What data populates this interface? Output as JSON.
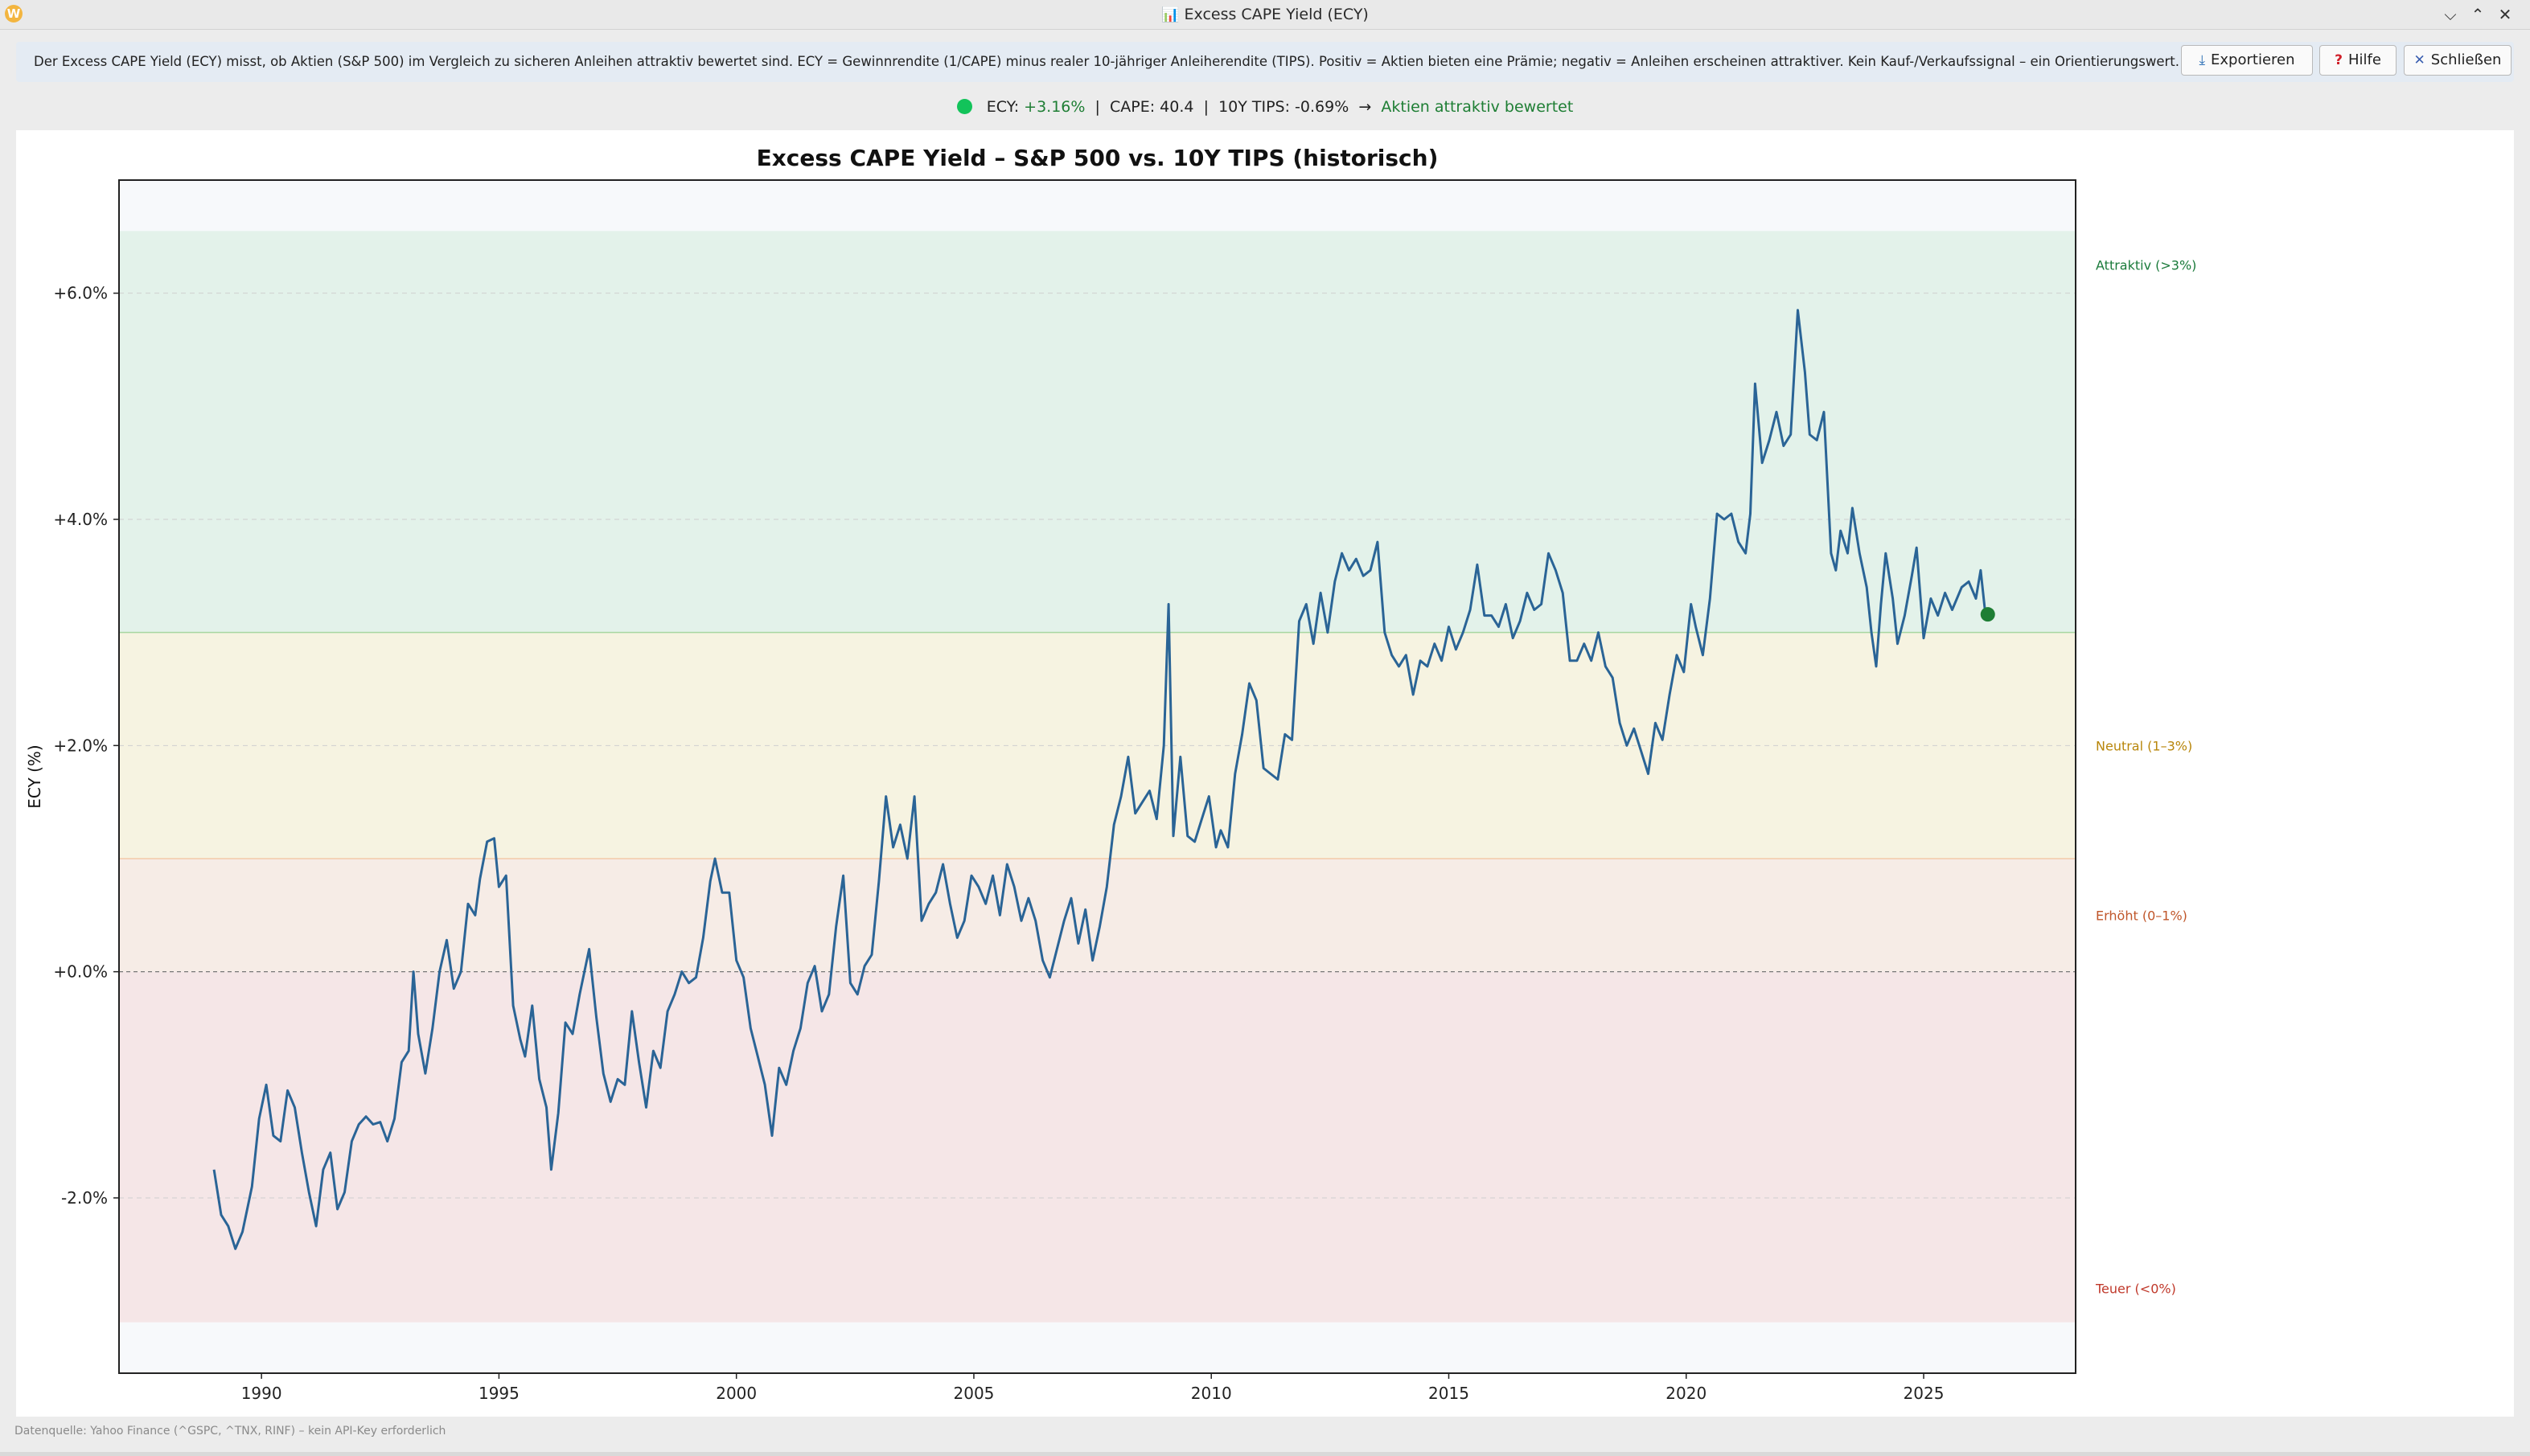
{
  "window": {
    "title": "Excess CAPE Yield (ECY)",
    "title_icon": "bar-chart-icon",
    "app_icon_letter": "W"
  },
  "info": {
    "text": "Der Excess CAPE Yield (ECY) misst, ob Aktien (S&P 500) im Vergleich zu sicheren Anleihen attraktiv bewertet sind. ECY = Gewinnrendite (1/CAPE) minus realer 10-jähriger Anleiherendite (TIPS). Positiv = Aktien bieten eine Prämie; negativ = Anleihen erscheinen attraktiver. Kein Kauf-/Verkaufssignal – ein Orientierungswert.",
    "export_label": "Exportieren",
    "help_label": "Hilfe",
    "close_label": "Schließen"
  },
  "status": {
    "ecy_label": "ECY:",
    "ecy_value": "+3.16%",
    "cape_text": "CAPE: 40.4",
    "tips_text": "10Y TIPS: -0.69%",
    "arrow": "→",
    "verdict": "Aktien attraktiv bewertet",
    "dot_color": "#12c35a"
  },
  "footer": {
    "source": "Datenquelle: Yahoo Finance (^GSPC, ^TNX, RINF) – kein API-Key erforderlich"
  },
  "chart_data": {
    "type": "line",
    "title": "Excess CAPE Yield – S&P 500 vs. 10Y TIPS (historisch)",
    "xlabel": "",
    "ylabel": "ECY (%)",
    "xlim": [
      1987.0,
      2028.2
    ],
    "ylim": [
      -3.55,
      7.0
    ],
    "x_ticks": [
      1990,
      1995,
      2000,
      2005,
      2010,
      2015,
      2020,
      2025
    ],
    "y_ticks": [
      6,
      4,
      2,
      0,
      -2
    ],
    "y_tick_labels": [
      "+6.0%",
      "+4.0%",
      "+2.0%",
      "+0.0%",
      "-2.0%"
    ],
    "zones": [
      {
        "label": "Attraktiv (>3%)",
        "from": 3.0,
        "to": 6.55,
        "fill": "#e3f2ea",
        "text_color": "#1a7a3a",
        "label_y": 6.25
      },
      {
        "label": "Neutral (1–3%)",
        "from": 1.0,
        "to": 3.0,
        "fill": "#f6f3e1",
        "text_color": "#b8860b",
        "label_y": 2.0
      },
      {
        "label": "Erhöht (0–1%)",
        "from": 0.0,
        "to": 1.0,
        "fill": "#f6ece6",
        "text_color": "#c0562a",
        "label_y": 0.5
      },
      {
        "label": "Teuer (<0%)",
        "from": -3.1,
        "to": 0.0,
        "fill": "#f5e6e7",
        "text_color": "#c0392b",
        "label_y": -2.8
      }
    ],
    "series": [
      {
        "color": "#2a6496",
        "points": [
          [
            1989.0,
            -1.75
          ],
          [
            1989.15,
            -2.15
          ],
          [
            1989.3,
            -2.25
          ],
          [
            1989.45,
            -2.45
          ],
          [
            1989.6,
            -2.3
          ],
          [
            1989.8,
            -1.9
          ],
          [
            1989.95,
            -1.3
          ],
          [
            1990.1,
            -1.0
          ],
          [
            1990.25,
            -1.45
          ],
          [
            1990.4,
            -1.5
          ],
          [
            1990.55,
            -1.05
          ],
          [
            1990.7,
            -1.2
          ],
          [
            1990.85,
            -1.6
          ],
          [
            1991.0,
            -1.95
          ],
          [
            1991.15,
            -2.25
          ],
          [
            1991.3,
            -1.75
          ],
          [
            1991.45,
            -1.6
          ],
          [
            1991.6,
            -2.1
          ],
          [
            1991.75,
            -1.95
          ],
          [
            1991.9,
            -1.5
          ],
          [
            1992.05,
            -1.35
          ],
          [
            1992.2,
            -1.28
          ],
          [
            1992.35,
            -1.35
          ],
          [
            1992.5,
            -1.33
          ],
          [
            1992.65,
            -1.5
          ],
          [
            1992.8,
            -1.3
          ],
          [
            1992.95,
            -0.8
          ],
          [
            1993.1,
            -0.7
          ],
          [
            1993.2,
            0.0
          ],
          [
            1993.3,
            -0.55
          ],
          [
            1993.45,
            -0.9
          ],
          [
            1993.6,
            -0.5
          ],
          [
            1993.75,
            0.0
          ],
          [
            1993.9,
            0.28
          ],
          [
            1994.05,
            -0.15
          ],
          [
            1994.2,
            0.0
          ],
          [
            1994.35,
            0.6
          ],
          [
            1994.5,
            0.5
          ],
          [
            1994.6,
            0.82
          ],
          [
            1994.75,
            1.15
          ],
          [
            1994.9,
            1.18
          ],
          [
            1995.0,
            0.75
          ],
          [
            1995.15,
            0.85
          ],
          [
            1995.3,
            -0.3
          ],
          [
            1995.45,
            -0.6
          ],
          [
            1995.55,
            -0.75
          ],
          [
            1995.7,
            -0.3
          ],
          [
            1995.85,
            -0.95
          ],
          [
            1996.0,
            -1.2
          ],
          [
            1996.1,
            -1.75
          ],
          [
            1996.25,
            -1.25
          ],
          [
            1996.4,
            -0.45
          ],
          [
            1996.55,
            -0.55
          ],
          [
            1996.7,
            -0.2
          ],
          [
            1996.9,
            0.2
          ],
          [
            1997.05,
            -0.4
          ],
          [
            1997.2,
            -0.9
          ],
          [
            1997.35,
            -1.15
          ],
          [
            1997.5,
            -0.95
          ],
          [
            1997.65,
            -1.0
          ],
          [
            1997.8,
            -0.35
          ],
          [
            1997.95,
            -0.8
          ],
          [
            1998.1,
            -1.2
          ],
          [
            1998.25,
            -0.7
          ],
          [
            1998.4,
            -0.85
          ],
          [
            1998.55,
            -0.35
          ],
          [
            1998.7,
            -0.2
          ],
          [
            1998.85,
            0.0
          ],
          [
            1999.0,
            -0.1
          ],
          [
            1999.15,
            -0.05
          ],
          [
            1999.3,
            0.3
          ],
          [
            1999.45,
            0.8
          ],
          [
            1999.55,
            1.0
          ],
          [
            1999.7,
            0.7
          ],
          [
            1999.85,
            0.7
          ],
          [
            2000.0,
            0.1
          ],
          [
            2000.15,
            -0.05
          ],
          [
            2000.3,
            -0.5
          ],
          [
            2000.45,
            -0.75
          ],
          [
            2000.6,
            -1.0
          ],
          [
            2000.75,
            -1.45
          ],
          [
            2000.9,
            -0.85
          ],
          [
            2001.05,
            -1.0
          ],
          [
            2001.2,
            -0.7
          ],
          [
            2001.35,
            -0.5
          ],
          [
            2001.5,
            -0.1
          ],
          [
            2001.65,
            0.05
          ],
          [
            2001.8,
            -0.35
          ],
          [
            2001.95,
            -0.2
          ],
          [
            2002.1,
            0.4
          ],
          [
            2002.25,
            0.85
          ],
          [
            2002.4,
            -0.1
          ],
          [
            2002.55,
            -0.2
          ],
          [
            2002.7,
            0.05
          ],
          [
            2002.85,
            0.15
          ],
          [
            2003.0,
            0.8
          ],
          [
            2003.15,
            1.55
          ],
          [
            2003.3,
            1.1
          ],
          [
            2003.45,
            1.3
          ],
          [
            2003.6,
            1.0
          ],
          [
            2003.75,
            1.55
          ],
          [
            2003.9,
            0.45
          ],
          [
            2004.05,
            0.6
          ],
          [
            2004.2,
            0.7
          ],
          [
            2004.35,
            0.95
          ],
          [
            2004.5,
            0.6
          ],
          [
            2004.65,
            0.3
          ],
          [
            2004.8,
            0.45
          ],
          [
            2004.95,
            0.85
          ],
          [
            2005.1,
            0.75
          ],
          [
            2005.25,
            0.6
          ],
          [
            2005.4,
            0.85
          ],
          [
            2005.55,
            0.5
          ],
          [
            2005.7,
            0.95
          ],
          [
            2005.85,
            0.75
          ],
          [
            2006.0,
            0.45
          ],
          [
            2006.15,
            0.65
          ],
          [
            2006.3,
            0.45
          ],
          [
            2006.45,
            0.1
          ],
          [
            2006.6,
            -0.05
          ],
          [
            2006.75,
            0.2
          ],
          [
            2006.9,
            0.45
          ],
          [
            2007.05,
            0.65
          ],
          [
            2007.2,
            0.25
          ],
          [
            2007.35,
            0.55
          ],
          [
            2007.5,
            0.1
          ],
          [
            2007.65,
            0.4
          ],
          [
            2007.8,
            0.75
          ],
          [
            2007.95,
            1.3
          ],
          [
            2008.1,
            1.55
          ],
          [
            2008.25,
            1.9
          ],
          [
            2008.4,
            1.4
          ],
          [
            2008.55,
            1.5
          ],
          [
            2008.7,
            1.6
          ],
          [
            2008.85,
            1.35
          ],
          [
            2009.0,
            2.0
          ],
          [
            2009.1,
            3.25
          ],
          [
            2009.2,
            1.2
          ],
          [
            2009.35,
            1.9
          ],
          [
            2009.5,
            1.2
          ],
          [
            2009.65,
            1.15
          ],
          [
            2009.8,
            1.35
          ],
          [
            2009.95,
            1.55
          ],
          [
            2010.1,
            1.1
          ],
          [
            2010.2,
            1.25
          ],
          [
            2010.35,
            1.1
          ],
          [
            2010.5,
            1.75
          ],
          [
            2010.65,
            2.1
          ],
          [
            2010.8,
            2.55
          ],
          [
            2010.95,
            2.4
          ],
          [
            2011.1,
            1.8
          ],
          [
            2011.25,
            1.75
          ],
          [
            2011.4,
            1.7
          ],
          [
            2011.55,
            2.1
          ],
          [
            2011.7,
            2.05
          ],
          [
            2011.85,
            3.1
          ],
          [
            2012.0,
            3.25
          ],
          [
            2012.15,
            2.9
          ],
          [
            2012.3,
            3.35
          ],
          [
            2012.45,
            3.0
          ],
          [
            2012.6,
            3.45
          ],
          [
            2012.75,
            3.7
          ],
          [
            2012.9,
            3.55
          ],
          [
            2013.05,
            3.65
          ],
          [
            2013.2,
            3.5
          ],
          [
            2013.35,
            3.55
          ],
          [
            2013.5,
            3.8
          ],
          [
            2013.65,
            3.0
          ],
          [
            2013.8,
            2.8
          ],
          [
            2013.95,
            2.7
          ],
          [
            2014.1,
            2.8
          ],
          [
            2014.25,
            2.45
          ],
          [
            2014.4,
            2.75
          ],
          [
            2014.55,
            2.7
          ],
          [
            2014.7,
            2.9
          ],
          [
            2014.85,
            2.75
          ],
          [
            2015.0,
            3.05
          ],
          [
            2015.15,
            2.85
          ],
          [
            2015.3,
            3.0
          ],
          [
            2015.45,
            3.2
          ],
          [
            2015.6,
            3.6
          ],
          [
            2015.75,
            3.15
          ],
          [
            2015.9,
            3.15
          ],
          [
            2016.05,
            3.05
          ],
          [
            2016.2,
            3.25
          ],
          [
            2016.35,
            2.95
          ],
          [
            2016.5,
            3.1
          ],
          [
            2016.65,
            3.35
          ],
          [
            2016.8,
            3.2
          ],
          [
            2016.95,
            3.25
          ],
          [
            2017.1,
            3.7
          ],
          [
            2017.25,
            3.55
          ],
          [
            2017.4,
            3.35
          ],
          [
            2017.55,
            2.75
          ],
          [
            2017.7,
            2.75
          ],
          [
            2017.85,
            2.9
          ],
          [
            2018.0,
            2.75
          ],
          [
            2018.15,
            3.0
          ],
          [
            2018.3,
            2.7
          ],
          [
            2018.45,
            2.6
          ],
          [
            2018.6,
            2.2
          ],
          [
            2018.75,
            2.0
          ],
          [
            2018.9,
            2.15
          ],
          [
            2019.05,
            1.95
          ],
          [
            2019.2,
            1.75
          ],
          [
            2019.35,
            2.2
          ],
          [
            2019.5,
            2.05
          ],
          [
            2019.65,
            2.45
          ],
          [
            2019.8,
            2.8
          ],
          [
            2019.95,
            2.65
          ],
          [
            2020.1,
            3.25
          ],
          [
            2020.2,
            3.05
          ],
          [
            2020.35,
            2.8
          ],
          [
            2020.5,
            3.3
          ],
          [
            2020.65,
            4.05
          ],
          [
            2020.8,
            4.0
          ],
          [
            2020.95,
            4.05
          ],
          [
            2021.1,
            3.8
          ],
          [
            2021.25,
            3.7
          ],
          [
            2021.35,
            4.05
          ],
          [
            2021.45,
            5.2
          ],
          [
            2021.6,
            4.5
          ],
          [
            2021.75,
            4.7
          ],
          [
            2021.9,
            4.95
          ],
          [
            2022.05,
            4.65
          ],
          [
            2022.2,
            4.75
          ],
          [
            2022.35,
            5.85
          ],
          [
            2022.5,
            5.3
          ],
          [
            2022.6,
            4.75
          ],
          [
            2022.75,
            4.7
          ],
          [
            2022.9,
            4.95
          ],
          [
            2023.05,
            3.7
          ],
          [
            2023.15,
            3.55
          ],
          [
            2023.25,
            3.9
          ],
          [
            2023.4,
            3.7
          ],
          [
            2023.5,
            4.1
          ],
          [
            2023.65,
            3.7
          ],
          [
            2023.8,
            3.4
          ],
          [
            2023.9,
            3.0
          ],
          [
            2024.0,
            2.7
          ],
          [
            2024.1,
            3.25
          ],
          [
            2024.2,
            3.7
          ],
          [
            2024.35,
            3.3
          ],
          [
            2024.45,
            2.9
          ],
          [
            2024.6,
            3.15
          ],
          [
            2024.75,
            3.5
          ],
          [
            2024.85,
            3.75
          ],
          [
            2025.0,
            2.95
          ],
          [
            2025.15,
            3.3
          ],
          [
            2025.3,
            3.15
          ],
          [
            2025.45,
            3.35
          ],
          [
            2025.6,
            3.2
          ],
          [
            2025.8,
            3.4
          ],
          [
            2025.95,
            3.45
          ],
          [
            2026.1,
            3.3
          ],
          [
            2026.2,
            3.55
          ],
          [
            2026.3,
            3.16
          ]
        ]
      }
    ],
    "current_point": {
      "x": 2026.35,
      "y": 3.16,
      "color": "#1e7e34"
    }
  }
}
